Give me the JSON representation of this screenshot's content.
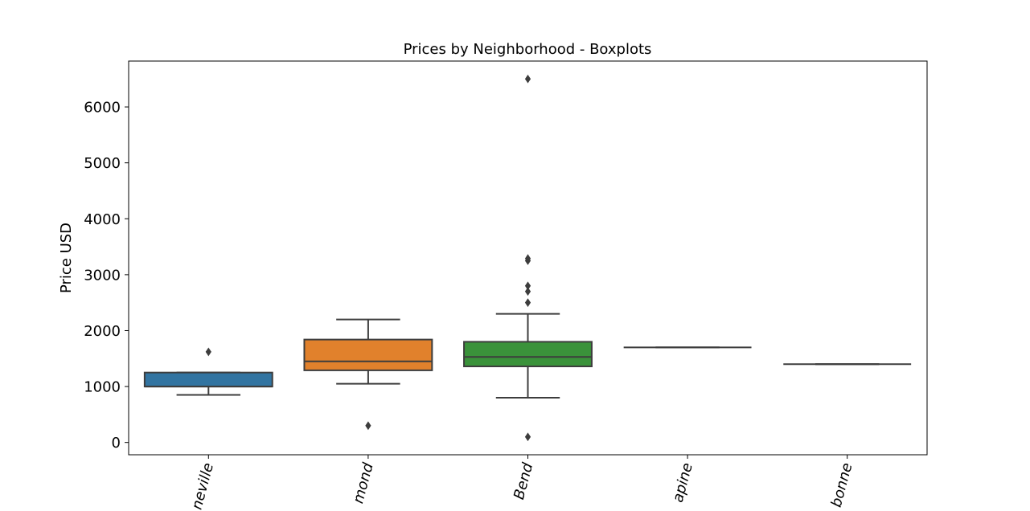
{
  "chart_data": {
    "type": "boxplot",
    "title": "Prices by Neighborhood - Boxplots",
    "xlabel": "",
    "ylabel": "Price USD",
    "ylim": [
      -220,
      6820
    ],
    "yticks": [
      0,
      1000,
      2000,
      3000,
      4000,
      5000,
      6000
    ],
    "yticklabels": [
      "0",
      "1000",
      "2000",
      "3000",
      "4000",
      "5000",
      "6000"
    ],
    "categories": [
      "neville",
      "mond",
      "Bend",
      "apine",
      "bonne"
    ],
    "x_tick_label_rotation_deg": 75,
    "grid": false,
    "boxes": [
      {
        "category": "neville",
        "color": "#3274a1",
        "whisker_low": 850,
        "q1": 1000,
        "median": 1000,
        "q3": 1250,
        "whisker_high": 1250,
        "outliers": [
          1620
        ]
      },
      {
        "category": "mond",
        "color": "#e1812c",
        "whisker_low": 1050,
        "q1": 1290,
        "median": 1450,
        "q3": 1840,
        "whisker_high": 2200,
        "outliers": [
          300
        ]
      },
      {
        "category": "Bend",
        "color": "#3a923a",
        "whisker_low": 800,
        "q1": 1360,
        "median": 1530,
        "q3": 1800,
        "whisker_high": 2300,
        "outliers": [
          100,
          2500,
          2700,
          2800,
          3250,
          3290,
          6500
        ]
      },
      {
        "category": "apine",
        "color": "#c03d3e",
        "whisker_low": 1700,
        "q1": 1700,
        "median": 1700,
        "q3": 1700,
        "whisker_high": 1700,
        "outliers": []
      },
      {
        "category": "bonne",
        "color": "#9372b2",
        "whisker_low": 1400,
        "q1": 1400,
        "median": 1400,
        "q3": 1400,
        "whisker_high": 1400,
        "outliers": []
      }
    ],
    "colors": {
      "box_edge": "#3d3d3d",
      "axes": "#000000",
      "background": "#ffffff"
    }
  }
}
